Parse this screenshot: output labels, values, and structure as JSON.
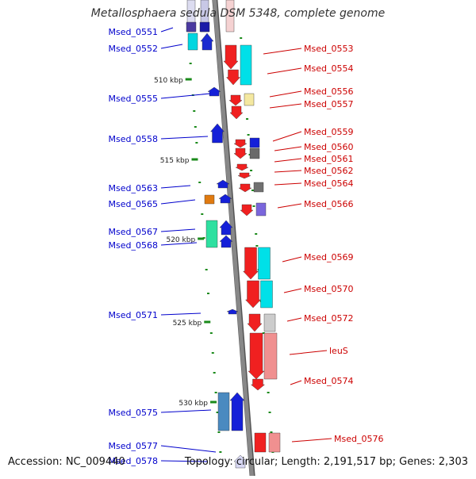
{
  "title": "Metallosphaera sedula DSM 5348, complete genome",
  "footer": {
    "accession": "Accession: NC_009440",
    "info": "Topology: circular; Length: 2,191,517 bp; Genes: 2,303"
  },
  "colors": {
    "left_label": "#0000cc",
    "right_label": "#cc0000",
    "backbone": "#888888",
    "tick": "#1a8a1a"
  },
  "kbp_ticks": [
    "510 kbp",
    "515 kbp",
    "520 kbp",
    "525 kbp",
    "530 kbp"
  ],
  "left_genes": [
    "Msed_0551",
    "Msed_0552",
    "Msed_0555",
    "Msed_0558",
    "Msed_0563",
    "Msed_0565",
    "Msed_0567",
    "Msed_0568",
    "Msed_0571",
    "Msed_0575",
    "Msed_0577",
    "Msed_0578"
  ],
  "right_genes": [
    "Msed_0553",
    "Msed_0554",
    "Msed_0556",
    "Msed_0557",
    "Msed_0559",
    "Msed_0560",
    "Msed_0561",
    "Msed_0562",
    "Msed_0564",
    "Msed_0566",
    "Msed_0569",
    "Msed_0570",
    "Msed_0572",
    "leuS",
    "Msed_0574",
    "Msed_0576"
  ]
}
